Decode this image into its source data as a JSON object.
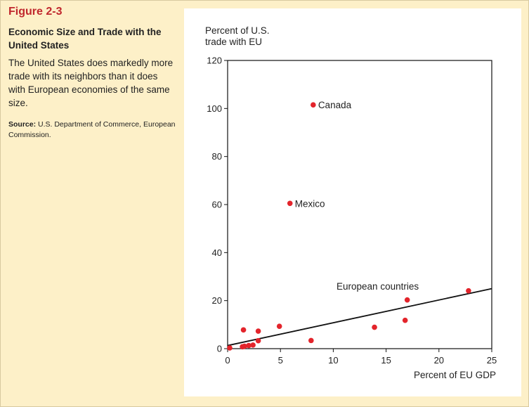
{
  "figure": {
    "label": "Figure 2-3",
    "title": "Economic Size and Trade with the United States",
    "description": "The United States does markedly more trade with its neighbors than it does with European economies of the same size.",
    "source_label": "Source:",
    "source_text": "U.S. Department of Commerce, European Commission."
  },
  "colors": {
    "background": "#fdf0c8",
    "accent": "#c0272d",
    "point": "#e3242b",
    "line": "#111111"
  },
  "chart_data": {
    "type": "scatter",
    "ylabel_lines": [
      "Percent of U.S.",
      "trade with EU"
    ],
    "xlabel": "Percent of EU GDP",
    "xlim": [
      0,
      25
    ],
    "ylim": [
      0,
      120
    ],
    "xticks": [
      0,
      5,
      10,
      15,
      20,
      25
    ],
    "yticks": [
      0,
      20,
      40,
      60,
      80,
      100,
      120
    ],
    "grid": false,
    "points": [
      {
        "x": 8.1,
        "y": 101.5,
        "label": "Canada"
      },
      {
        "x": 5.9,
        "y": 60.5,
        "label": "Mexico"
      },
      {
        "x": 0.2,
        "y": 0.3
      },
      {
        "x": 1.4,
        "y": 0.8
      },
      {
        "x": 1.6,
        "y": 1.0
      },
      {
        "x": 1.5,
        "y": 7.8
      },
      {
        "x": 2.0,
        "y": 1.3
      },
      {
        "x": 2.4,
        "y": 1.5
      },
      {
        "x": 2.9,
        "y": 3.3
      },
      {
        "x": 2.9,
        "y": 7.3
      },
      {
        "x": 4.9,
        "y": 9.3
      },
      {
        "x": 7.9,
        "y": 3.4
      },
      {
        "x": 13.9,
        "y": 8.9
      },
      {
        "x": 16.8,
        "y": 11.8
      },
      {
        "x": 17.0,
        "y": 20.3
      },
      {
        "x": 22.8,
        "y": 24.1
      }
    ],
    "trendline": {
      "label": "European countries",
      "x": [
        0,
        25
      ],
      "y": [
        1.3,
        25.0
      ]
    }
  }
}
